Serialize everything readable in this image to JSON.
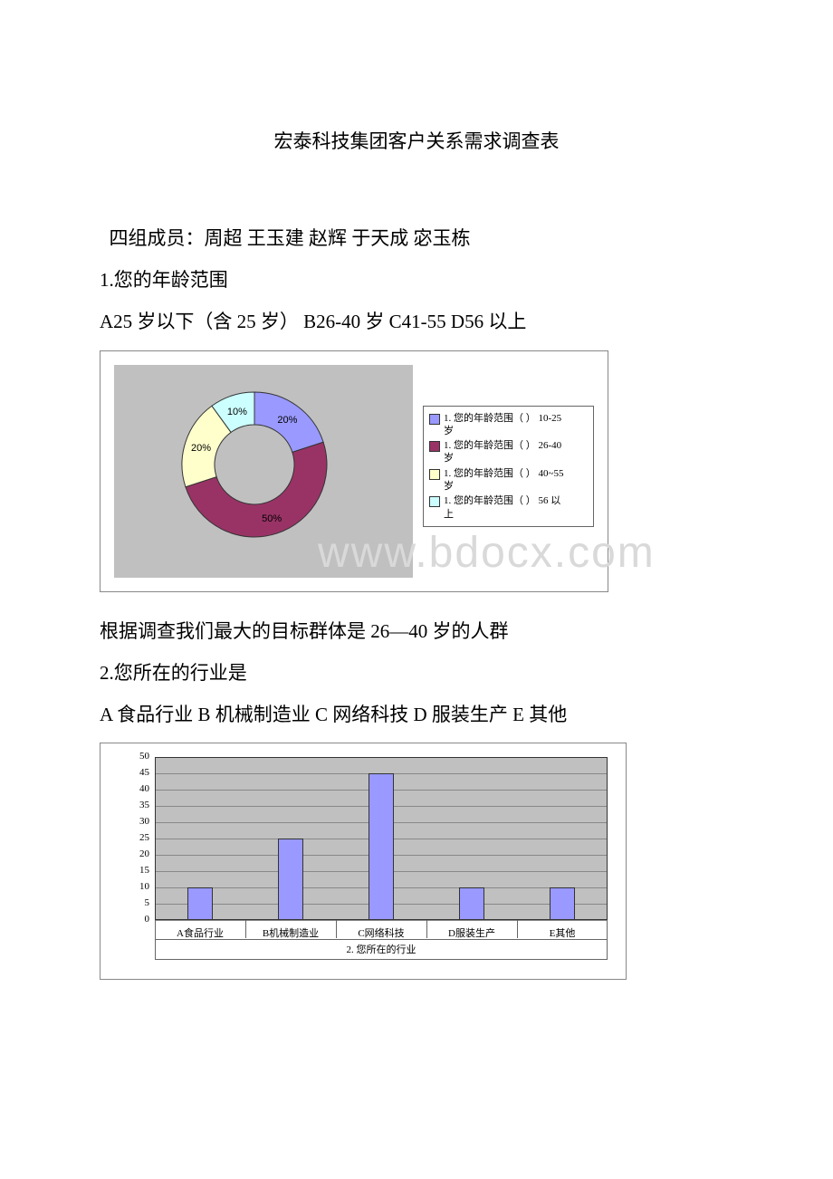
{
  "title": "宏泰科技集团客户关系需求调查表",
  "members_line": "四组成员：周超  王玉建  赵辉  于天成  宓玉栋",
  "q1_label": "1.您的年龄范围",
  "q1_options": "A25 岁以下（含 25 岁）    B26-40 岁      C41-55      D56 以上",
  "q1_conclusion": "根据调查我们最大的目标群体是 26—40 岁的人群",
  "q2_label": " 2.您所在的行业是",
  "q2_options": "A 食品行业    B 机械制造业      C 网络科技      D 服装生产      E 其他",
  "watermark": "www.bdocx.com",
  "pie_chart": {
    "type": "donut",
    "inner_ratio": 0.55,
    "slices": [
      {
        "label": "1. 您的年龄范围（  ） 10-25岁",
        "value": 20,
        "display": "20%",
        "color": "#9999ff"
      },
      {
        "label": "1. 您的年龄范围（  ） 26-40岁",
        "value": 50,
        "display": "50%",
        "color": "#993366"
      },
      {
        "label": "1. 您的年龄范围（  ） 40~55岁",
        "value": 20,
        "display": "20%",
        "color": "#ffffcc"
      },
      {
        "label": "1. 您的年龄范围（  ） 56 以上",
        "value": 10,
        "display": "10%",
        "color": "#ccffff"
      }
    ],
    "plot_bg": "#c0c0c0",
    "stroke": "#333333"
  },
  "bar_chart": {
    "type": "bar",
    "categories": [
      "A食品行业",
      "B机械制造业",
      "C网络科技",
      "D服装生产",
      "E其他"
    ],
    "values": [
      10,
      25,
      45,
      10,
      10
    ],
    "bar_color": "#9999ff",
    "bar_stroke": "#333333",
    "ylim": [
      0,
      50
    ],
    "ytick_step": 5,
    "yticks": [
      0,
      5,
      10,
      15,
      20,
      25,
      30,
      35,
      40,
      45,
      50
    ],
    "xtitle": "2. 您所在的行业",
    "plot_bg": "#c0c0c0",
    "grid_color": "#888888",
    "bar_width": 0.28
  }
}
